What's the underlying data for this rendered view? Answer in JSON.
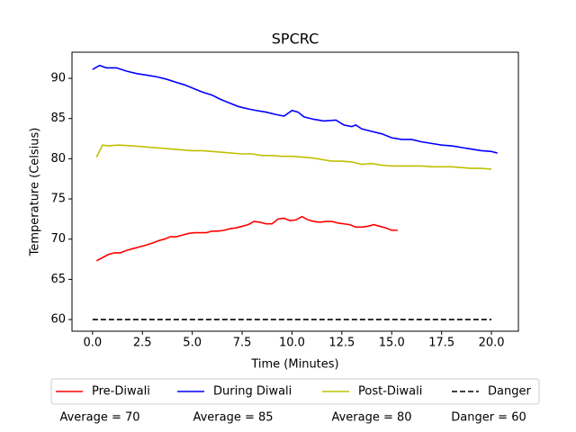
{
  "chart_data": {
    "type": "line",
    "title": "SPCRC",
    "x_label": "Time (Minutes)",
    "y_label": "Temperature (Celsius)",
    "xlim": [
      -1.03,
      21.35
    ],
    "ylim": [
      58.55,
      93.25
    ],
    "xticks": [
      {
        "value": 0,
        "label": "0.0"
      },
      {
        "value": 2.5,
        "label": "2.5"
      },
      {
        "value": 5,
        "label": "5.0"
      },
      {
        "value": 7.5,
        "label": "7.5"
      },
      {
        "value": 10,
        "label": "10.0"
      },
      {
        "value": 12.5,
        "label": "12.5"
      },
      {
        "value": 15,
        "label": "15.0"
      },
      {
        "value": 17.5,
        "label": "17.5"
      },
      {
        "value": 20,
        "label": "20.0"
      }
    ],
    "yticks": [
      60,
      65,
      70,
      75,
      80,
      85,
      90
    ],
    "grid": false,
    "legend": "bottom",
    "series": [
      {
        "name": "Pre-Diwali",
        "color": "#ff0000",
        "dash": false,
        "x": [
          0.2,
          0.5,
          0.8,
          1.1,
          1.4,
          1.7,
          2.0,
          2.3,
          2.6,
          3.0,
          3.3,
          3.6,
          3.9,
          4.2,
          4.5,
          4.8,
          5.1,
          5.4,
          5.7,
          6.0,
          6.3,
          6.6,
          6.9,
          7.2,
          7.5,
          7.8,
          8.1,
          8.4,
          8.7,
          9.0,
          9.3,
          9.6,
          9.9,
          10.2,
          10.5,
          10.8,
          11.1,
          11.4,
          11.7,
          12.0,
          12.3,
          12.6,
          12.9,
          13.2,
          13.5,
          13.8,
          14.1,
          14.4,
          14.7,
          15.0,
          15.3
        ],
        "values": [
          67.3,
          67.7,
          68.1,
          68.3,
          68.3,
          68.6,
          68.8,
          69.0,
          69.2,
          69.5,
          69.8,
          70.0,
          70.3,
          70.3,
          70.5,
          70.7,
          70.8,
          70.8,
          70.8,
          71.0,
          71.0,
          71.1,
          71.3,
          71.4,
          71.6,
          71.8,
          72.2,
          72.1,
          71.9,
          71.9,
          72.5,
          72.6,
          72.3,
          72.4,
          72.8,
          72.4,
          72.2,
          72.1,
          72.2,
          72.2,
          72.0,
          71.9,
          71.8,
          71.5,
          71.5,
          71.6,
          71.8,
          71.6,
          71.4,
          71.1,
          71.1
        ]
      },
      {
        "name": "During Diwali",
        "color": "#0000ff",
        "dash": false,
        "x": [
          0,
          0.35,
          0.7,
          1.2,
          1.7,
          2.2,
          2.7,
          3.2,
          3.7,
          4.2,
          4.6,
          5.0,
          5.5,
          6.0,
          6.4,
          6.8,
          7.3,
          7.8,
          8.2,
          8.7,
          9.2,
          9.6,
          10.0,
          10.3,
          10.6,
          11.1,
          11.6,
          12.2,
          12.6,
          13.0,
          13.2,
          13.5,
          14.0,
          14.5,
          15.0,
          15.5,
          16.0,
          16.5,
          17.0,
          17.5,
          18.0,
          18.5,
          19.0,
          19.5,
          20.0,
          20.3
        ],
        "values": [
          91.1,
          91.6,
          91.3,
          91.3,
          90.9,
          90.6,
          90.4,
          90.2,
          89.9,
          89.5,
          89.2,
          88.8,
          88.3,
          87.9,
          87.4,
          87.0,
          86.5,
          86.2,
          86.0,
          85.8,
          85.5,
          85.3,
          86.0,
          85.8,
          85.2,
          84.9,
          84.7,
          84.8,
          84.2,
          84.0,
          84.2,
          83.7,
          83.4,
          83.1,
          82.6,
          82.4,
          82.4,
          82.1,
          81.9,
          81.7,
          81.6,
          81.4,
          81.2,
          81.0,
          80.9,
          80.7
        ]
      },
      {
        "name": "Post-Diwali",
        "color": "#bfbf00",
        "dash": false,
        "x": [
          0.2,
          0.5,
          0.8,
          1.3,
          2,
          2.5,
          3,
          3.5,
          4,
          4.5,
          5,
          5.5,
          6,
          6.5,
          7,
          7.5,
          8,
          8.5,
          9,
          9.5,
          10,
          10.5,
          11,
          11.5,
          12,
          12.5,
          13,
          13.5,
          14,
          14.5,
          15,
          16,
          16.5,
          17,
          18,
          18.5,
          19,
          19.5,
          20
        ],
        "values": [
          80.2,
          81.7,
          81.6,
          81.7,
          81.6,
          81.5,
          81.4,
          81.3,
          81.2,
          81.1,
          81.0,
          81.0,
          80.9,
          80.8,
          80.7,
          80.6,
          80.6,
          80.4,
          80.4,
          80.3,
          80.3,
          80.2,
          80.1,
          79.9,
          79.7,
          79.7,
          79.6,
          79.3,
          79.4,
          79.2,
          79.1,
          79.1,
          79.1,
          79.0,
          79.0,
          78.9,
          78.8,
          78.8,
          78.7
        ]
      },
      {
        "name": "Danger",
        "color": "#000000",
        "dash": true,
        "x": [
          0,
          20
        ],
        "values": [
          60,
          60
        ]
      }
    ],
    "annotations": [
      "Average = 70",
      "Average = 85",
      "Average = 80",
      "Danger = 60"
    ]
  }
}
